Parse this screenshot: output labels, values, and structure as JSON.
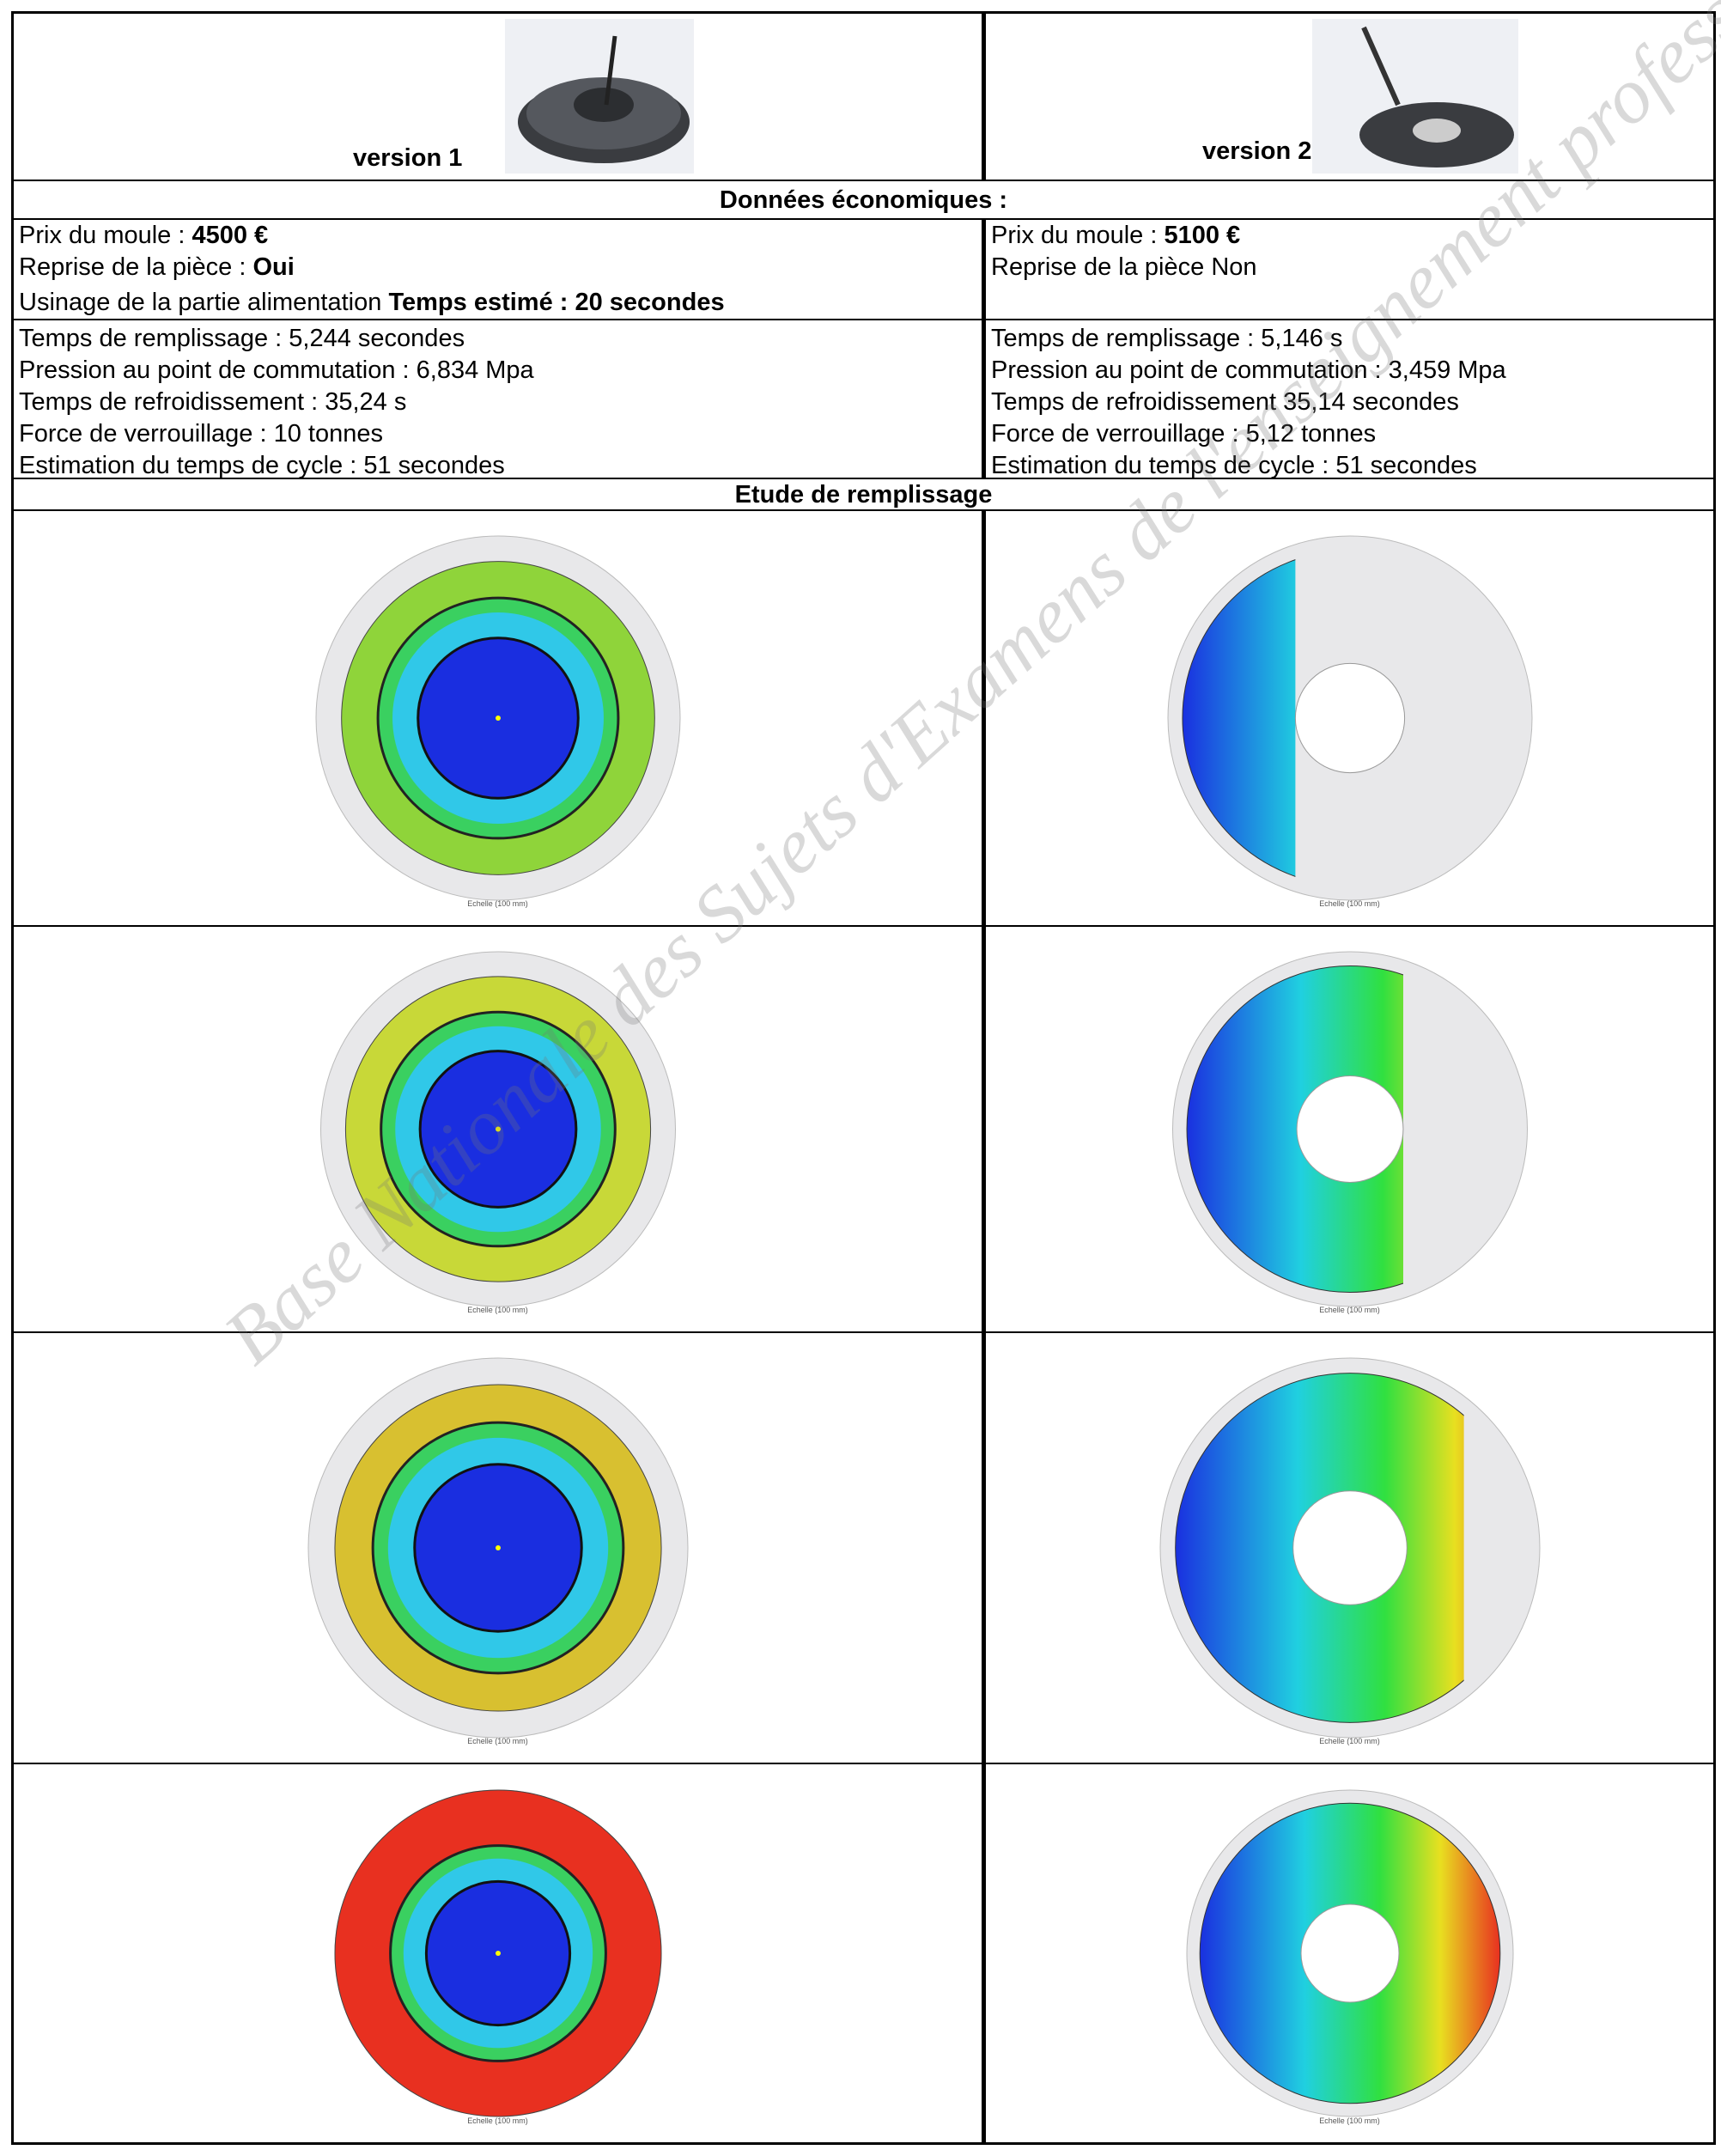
{
  "header": {
    "versions": [
      "version 1",
      "version 2"
    ]
  },
  "economics": {
    "title": "Données économiques :",
    "left": [
      {
        "label": "Prix du moule : ",
        "value": "4500 €"
      },
      {
        "label": "Reprise de la pièce : ",
        "value": "Oui"
      },
      {
        "label": "Usinage de  la partie alimentation ",
        "value": "Temps estimé : 20 secondes"
      }
    ],
    "right": [
      {
        "label": "Prix du moule : ",
        "value": "5100 €"
      },
      {
        "label": "Reprise de la pièce Non"
      }
    ]
  },
  "parameters": {
    "left": [
      "Temps de remplissage : 5,244 secondes",
      "Pression au  point de commutation : 6,834 Mpa",
      "Temps de refroidissement : 35,24 s",
      "Force de verrouillage : 10 tonnes",
      "Estimation du temps de cycle : 51 secondes"
    ],
    "right": [
      "Temps de remplissage : 5,146 s",
      "Pression au point de commutation : 3,459 Mpa",
      "Temps de refroidissement 35,14 secondes",
      "Force de verrouillage : 5,12 tonnes",
      "Estimation du temps de cycle : 51 secondes"
    ]
  },
  "filling": {
    "title": "Etude de remplissage",
    "caption": "Echelle (100 mm)"
  },
  "watermark": "Base Nationale des Sujets d'Examens de l'enseignement professionnel"
}
